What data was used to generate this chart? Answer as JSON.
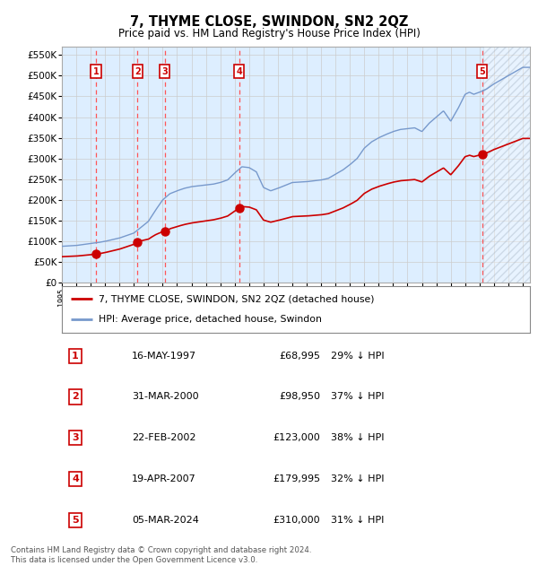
{
  "title": "7, THYME CLOSE, SWINDON, SN2 2QZ",
  "subtitle": "Price paid vs. HM Land Registry's House Price Index (HPI)",
  "footer_line1": "Contains HM Land Registry data © Crown copyright and database right 2024.",
  "footer_line2": "This data is licensed under the Open Government Licence v3.0.",
  "legend_red": "7, THYME CLOSE, SWINDON, SN2 2QZ (detached house)",
  "legend_blue": "HPI: Average price, detached house, Swindon",
  "sales": [
    {
      "num": 1,
      "date": "16-MAY-1997",
      "price": 68995,
      "year": 1997.37,
      "pct": "29% ↓ HPI"
    },
    {
      "num": 2,
      "date": "31-MAR-2000",
      "price": 98950,
      "year": 2000.25,
      "pct": "37% ↓ HPI"
    },
    {
      "num": 3,
      "date": "22-FEB-2002",
      "price": 123000,
      "year": 2002.14,
      "pct": "38% ↓ HPI"
    },
    {
      "num": 4,
      "date": "19-APR-2007",
      "price": 179995,
      "year": 2007.3,
      "pct": "32% ↓ HPI"
    },
    {
      "num": 5,
      "date": "05-MAR-2024",
      "price": 310000,
      "year": 2024.17,
      "pct": "31% ↓ HPI"
    }
  ],
  "ylim": [
    0,
    570000
  ],
  "xlim_start": 1995.0,
  "xlim_end": 2027.5,
  "future_start": 2024.25,
  "bg_color": "#ddeeff",
  "grid_color": "#cccccc",
  "red_color": "#cc0000",
  "blue_color": "#7799cc",
  "dashed_color": "#ff5555",
  "hpi_key_years": [
    1995,
    1996,
    1997,
    1997.5,
    1998,
    1999,
    2000,
    2001,
    2001.5,
    2002,
    2002.5,
    2003,
    2003.5,
    2004,
    2005,
    2005.5,
    2006,
    2006.5,
    2007,
    2007.5,
    2008,
    2008.5,
    2009,
    2009.5,
    2010,
    2010.5,
    2011,
    2012,
    2013,
    2013.5,
    2014,
    2014.5,
    2015,
    2015.5,
    2016,
    2016.5,
    2017,
    2017.5,
    2018,
    2018.5,
    2019,
    2019.5,
    2020,
    2020.5,
    2021,
    2021.5,
    2022,
    2022.5,
    2023,
    2023.3,
    2023.6,
    2024.0,
    2024.5,
    2025,
    2026,
    2027
  ],
  "hpi_key_vals": [
    88000,
    90000,
    95000,
    97000,
    100000,
    108000,
    120000,
    148000,
    175000,
    200000,
    215000,
    222000,
    228000,
    232000,
    236000,
    238000,
    242000,
    248000,
    265000,
    280000,
    278000,
    268000,
    230000,
    222000,
    228000,
    235000,
    242000,
    244000,
    248000,
    252000,
    262000,
    272000,
    285000,
    300000,
    325000,
    340000,
    350000,
    358000,
    365000,
    370000,
    372000,
    374000,
    365000,
    385000,
    400000,
    415000,
    390000,
    420000,
    455000,
    460000,
    455000,
    460000,
    468000,
    480000,
    500000,
    520000
  ]
}
